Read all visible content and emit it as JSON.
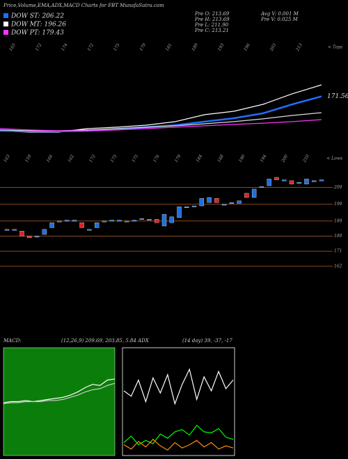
{
  "header": {
    "title": "Price,Volume,EMA,ADX,MACD Charts for FBT MunafaSutra.com"
  },
  "legend": [
    "DOW ST: 206.22",
    "DOW MT: 196.26",
    "DOW PT: 179.43"
  ],
  "info": [
    "Pre  O: 213.69",
    "Pre  H: 213.69",
    "Pre  L: 211.90",
    "Pre  C: 213.21",
    "Avg  V: 0.001 M",
    "Pre  V: 0.025 M"
  ],
  "tops_label": "< Tops",
  "lows_label": "< Lows",
  "tops": [
    "165",
    "172",
    "174",
    "172",
    "175",
    "179",
    "181",
    "189",
    "193",
    "196",
    "203",
    "213"
  ],
  "lows": [
    "163",
    "159",
    "166",
    "162",
    "172",
    "175",
    "175",
    "176",
    "179",
    "184",
    "188",
    "190",
    "194",
    "200",
    "210"
  ],
  "macd_text": {
    "label": "MACD:",
    "params": "(12,26,9) 209.69, 203.85, 5.84 ADX",
    "adx": "(14 day) 39, -37, -17"
  },
  "chart_data": [
    {
      "type": "line",
      "last_label": "171.56",
      "ylim": [
        150,
        185
      ],
      "series": [
        {
          "color": "#ffffff",
          "values": [
            154.2,
            153.5,
            153.5,
            155.3,
            156,
            157,
            158.8,
            162.3,
            164,
            167.5,
            172.8,
            177.3
          ]
        },
        {
          "name": "DOW ST: 206.22",
          "color": "#1e6fff",
          "values": [
            154.2,
            153.9,
            153.9,
            154.2,
            154.9,
            156,
            157,
            158.8,
            160.5,
            163,
            167.5,
            171.5
          ]
        },
        {
          "name": "DOW MT: 196.26",
          "color": "#dddddd",
          "values": [
            154.6,
            154.2,
            154.2,
            154.6,
            155.3,
            156,
            156.7,
            157.7,
            158.8,
            160.2,
            161.9,
            163.3
          ]
        },
        {
          "name": "DOW PT: 179.43",
          "color": "#ff33ff",
          "values": [
            155.3,
            154.6,
            154.2,
            154.2,
            154.6,
            155.3,
            156,
            156.7,
            157.4,
            158,
            158.8,
            159.8
          ]
        }
      ]
    },
    {
      "type": "candlestick",
      "ylim": [
        157,
        215
      ],
      "yticks": [
        209,
        199,
        189,
        180,
        171,
        162
      ],
      "up_color": "#1e6fe0",
      "down_color": "#e02020",
      "open": [
        184,
        184,
        183,
        180,
        180,
        181,
        185,
        189,
        189.5,
        189.5,
        188,
        184,
        185,
        189,
        189.5,
        189.5,
        189,
        189.5,
        190.5,
        190,
        190,
        186,
        188,
        191,
        197.5,
        198,
        198,
        200,
        202.5,
        199,
        200,
        199.5,
        205.5,
        203,
        209.5,
        210,
        215,
        213.5,
        213,
        212,
        211,
        213,
        213.5
      ],
      "close": [
        184,
        184,
        180,
        179,
        180,
        184,
        188,
        189,
        189.5,
        189.5,
        185,
        184,
        188,
        189,
        189.5,
        189.5,
        189,
        189.5,
        190.5,
        190,
        188,
        193,
        191.5,
        197.5,
        197.5,
        198,
        202.5,
        203,
        200,
        199,
        200,
        201,
        203,
        208,
        209.5,
        214,
        213.5,
        213.5,
        211,
        212,
        214,
        213,
        213.5
      ]
    },
    {
      "type": "line",
      "ylim": [
        0,
        10
      ],
      "background": "#0b7d0b",
      "series": [
        {
          "color": "#ffffff",
          "values": [
            4.9,
            5.0,
            5.0,
            5.1,
            5.0,
            5.1,
            5.2,
            5.3,
            5.4,
            5.6,
            5.9,
            6.3,
            6.6,
            6.5,
            7.0,
            7.1
          ]
        },
        {
          "color": "#cccccc",
          "values": [
            4.8,
            4.9,
            4.9,
            5.0,
            5.0,
            5.0,
            5.1,
            5.1,
            5.2,
            5.4,
            5.6,
            5.9,
            6.1,
            6.2,
            6.5,
            6.7
          ]
        }
      ]
    },
    {
      "type": "line",
      "ylim": [
        0,
        100
      ],
      "background": "#000000",
      "series": [
        {
          "color": "#ffffff",
          "values": [
            60,
            55,
            70,
            50,
            72,
            58,
            75,
            48,
            66,
            80,
            52,
            73,
            60,
            78,
            62,
            70
          ]
        },
        {
          "color": "#00ff00",
          "values": [
            12,
            18,
            10,
            14,
            11,
            20,
            16,
            22,
            24,
            19,
            28,
            22,
            21,
            25,
            17,
            15
          ]
        },
        {
          "color": "#ff8c00",
          "values": [
            10,
            6,
            13,
            8,
            15,
            9,
            5,
            12,
            7,
            10,
            14,
            8,
            12,
            6,
            9,
            7
          ]
        }
      ]
    }
  ]
}
